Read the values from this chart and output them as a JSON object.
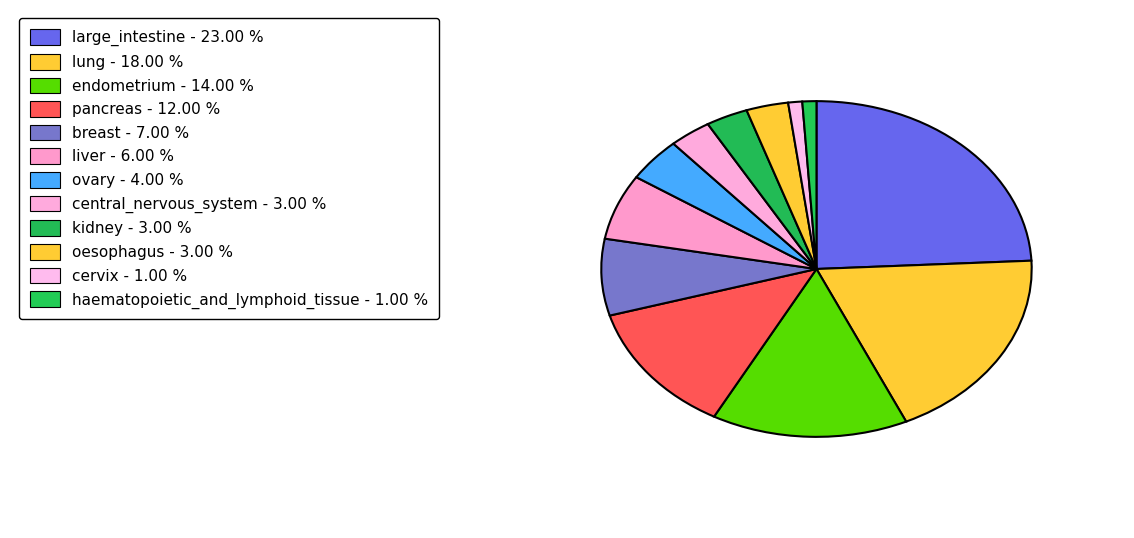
{
  "labels": [
    "large_intestine",
    "lung",
    "endometrium",
    "pancreas",
    "breast",
    "liver",
    "ovary",
    "central_nervous_system",
    "kidney",
    "oesophagus",
    "cervix",
    "haematopoietic_and_lymphoid_tissue"
  ],
  "values": [
    23,
    18,
    14,
    12,
    7,
    6,
    4,
    3,
    3,
    3,
    1,
    1
  ],
  "colors": [
    "#6666ee",
    "#ffcc33",
    "#55dd00",
    "#ff5555",
    "#7777cc",
    "#ff99cc",
    "#44aaff",
    "#ffaadd",
    "#22bb55",
    "#ffcc33",
    "#ffbbee",
    "#22cc55"
  ],
  "legend_labels": [
    "large_intestine - 23.00 %",
    "lung - 18.00 %",
    "endometrium - 14.00 %",
    "pancreas - 12.00 %",
    "breast - 7.00 %",
    "liver - 6.00 %",
    "ovary - 4.00 %",
    "central_nervous_system - 3.00 %",
    "kidney - 3.00 %",
    "oesophagus - 3.00 %",
    "cervix - 1.00 %",
    "haematopoietic_and_lymphoid_tissue - 1.00 %"
  ],
  "startangle": 90,
  "background_color": "#ffffff",
  "figsize": [
    11.34,
    5.38
  ],
  "dpi": 100
}
